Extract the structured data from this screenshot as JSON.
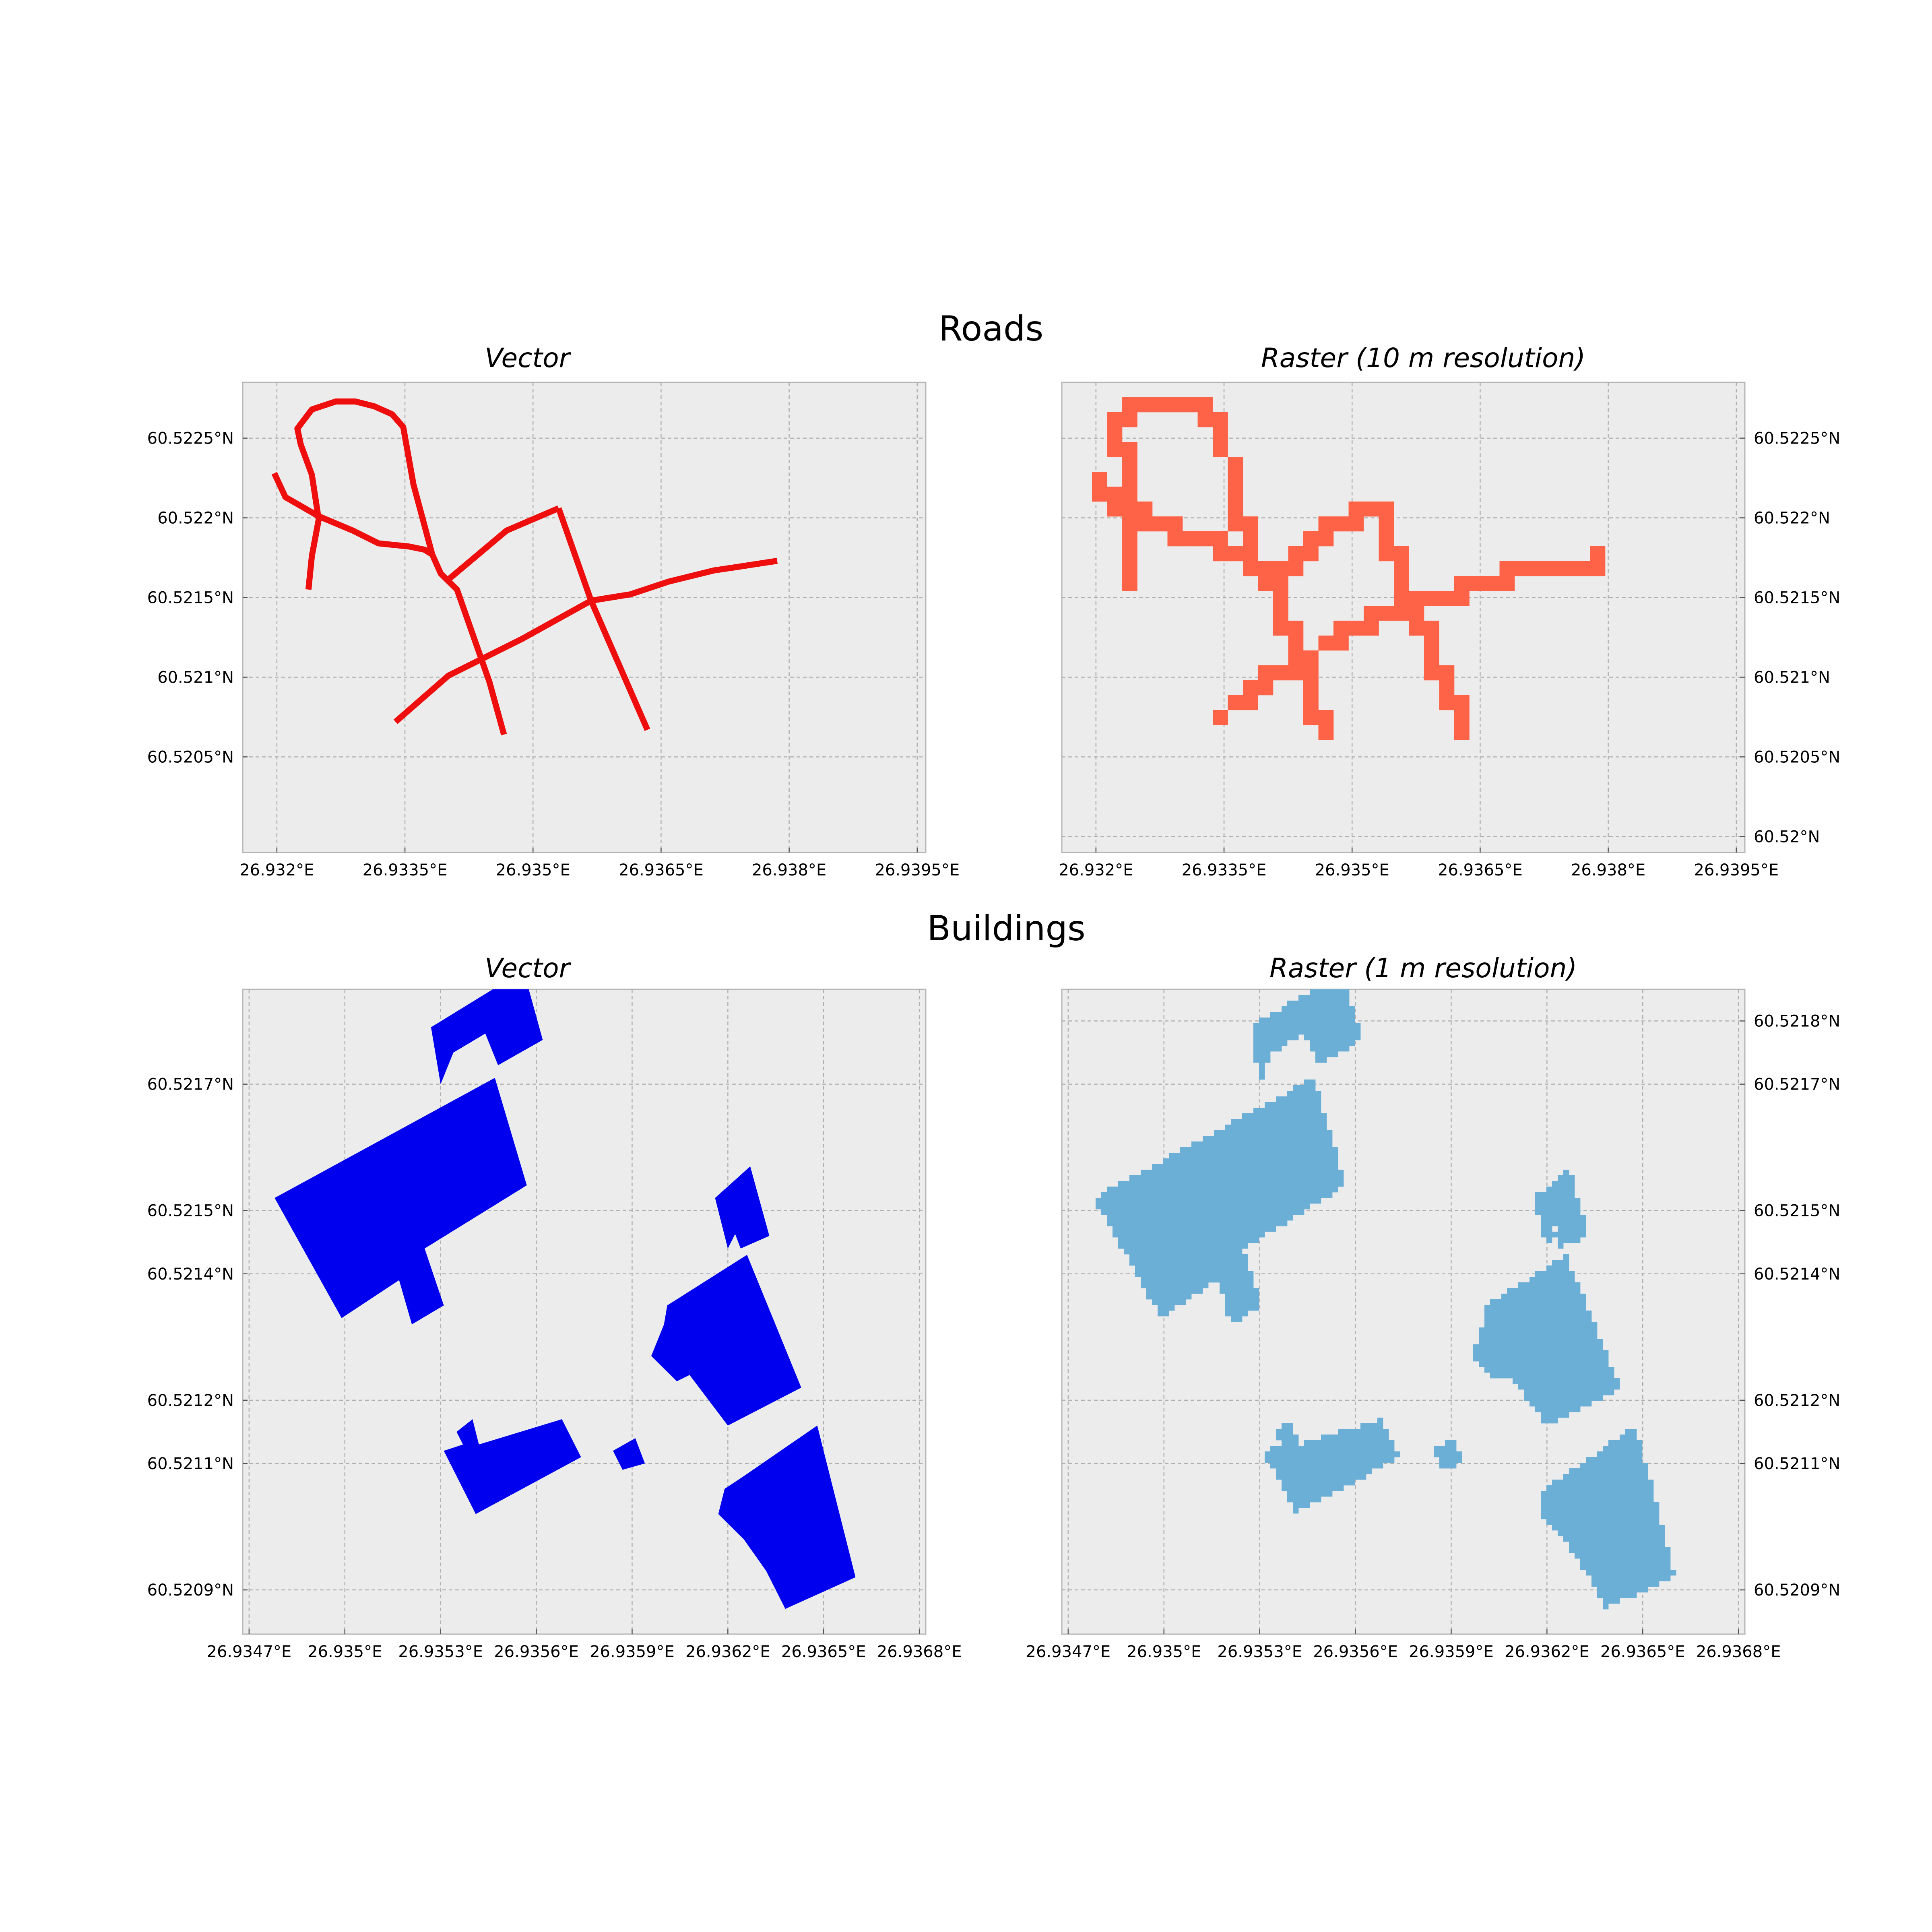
{
  "figure": {
    "sections": [
      {
        "title": "Roads"
      },
      {
        "title": "Buildings"
      }
    ]
  },
  "colors": {
    "road_vector": "#ee0e0e",
    "road_raster": "#ff6347",
    "building_vector": "#0000ee",
    "building_raster": "#6baed6",
    "panel_background": "#ececec"
  },
  "chart_data": [
    {
      "type": "map",
      "layer": "roads",
      "title": "Vector",
      "style": "line",
      "grid": true,
      "xlim": [
        26.9316,
        26.9396
      ],
      "ylim": [
        60.5199,
        60.52285
      ],
      "x_ticks": [
        26.932,
        26.9335,
        26.935,
        26.9365,
        26.938,
        26.9395
      ],
      "x_tick_labels": [
        "26.932°E",
        "26.9335°E",
        "26.935°E",
        "26.9365°E",
        "26.938°E",
        "26.9395°E"
      ],
      "y_ticks": [
        60.5205,
        60.521,
        60.5215,
        60.522,
        60.5225
      ],
      "y_tick_labels": [
        "60.5205°N",
        "60.521°N",
        "60.5215°N",
        "60.522°N",
        "60.5225°N"
      ],
      "y_axis_side": "left",
      "features": [
        [
          [
            26.93197,
            60.52228
          ],
          [
            26.9321,
            60.52213
          ],
          [
            26.93249,
            60.52201
          ],
          [
            26.93289,
            60.52192
          ],
          [
            26.93319,
            60.52184
          ],
          [
            26.93355,
            60.52182
          ],
          [
            26.93373,
            60.5218
          ],
          [
            26.93382,
            60.52177
          ]
        ],
        [
          [
            26.93237,
            60.52155
          ],
          [
            26.93241,
            60.52176
          ],
          [
            26.93249,
            60.52199
          ],
          [
            26.93241,
            60.52227
          ],
          [
            26.93228,
            60.52246
          ],
          [
            26.93224,
            60.52256
          ],
          [
            26.93241,
            60.52268
          ],
          [
            26.93269,
            60.52273
          ],
          [
            26.93292,
            60.52273
          ],
          [
            26.93314,
            60.5227
          ],
          [
            26.93335,
            60.52265
          ],
          [
            26.93348,
            60.52257
          ],
          [
            26.9336,
            60.52221
          ],
          [
            26.93382,
            60.52177
          ],
          [
            26.93392,
            60.52165
          ],
          [
            26.93411,
            60.52155
          ],
          [
            26.93449,
            60.52097
          ],
          [
            26.93466,
            60.52064
          ]
        ],
        [
          [
            26.93398,
            60.5216
          ],
          [
            26.93469,
            60.52192
          ],
          [
            26.9353,
            60.52206
          ]
        ],
        [
          [
            26.9353,
            60.52206
          ],
          [
            26.93568,
            60.52148
          ],
          [
            26.93634,
            60.52067
          ]
        ],
        [
          [
            26.93339,
            60.52072
          ],
          [
            26.93401,
            60.52101
          ],
          [
            26.93487,
            60.52124
          ],
          [
            26.93568,
            60.52148
          ],
          [
            26.93614,
            60.52152
          ],
          [
            26.93659,
            60.5216
          ],
          [
            26.93712,
            60.52167
          ],
          [
            26.93737,
            60.52169
          ],
          [
            26.93786,
            60.52173
          ]
        ]
      ]
    },
    {
      "type": "map",
      "layer": "roads",
      "title": "Raster (10 m resolution)",
      "style": "raster",
      "resolution": "10 m",
      "grid": true,
      "xlim": [
        26.9316,
        26.9396
      ],
      "ylim": [
        60.5199,
        60.52285
      ],
      "x_ticks": [
        26.932,
        26.9335,
        26.935,
        26.9365,
        26.938,
        26.9395
      ],
      "x_tick_labels": [
        "26.932°E",
        "26.9335°E",
        "26.935°E",
        "26.9365°E",
        "26.938°E",
        "26.9395°E"
      ],
      "y_ticks": [
        60.52,
        60.5205,
        60.521,
        60.5215,
        60.522,
        60.5225
      ],
      "y_tick_labels": [
        "60.52°N",
        "60.5205°N",
        "60.521°N",
        "60.5215°N",
        "60.522°N",
        "60.5225°N"
      ],
      "y_axis_side": "right"
    },
    {
      "type": "map",
      "layer": "buildings",
      "title": "Vector",
      "style": "polygon",
      "grid": true,
      "xlim": [
        26.93468,
        26.93682
      ],
      "ylim": [
        60.52083,
        60.52185
      ],
      "x_ticks": [
        26.9347,
        26.935,
        26.9353,
        26.9356,
        26.9359,
        26.9362,
        26.9365,
        26.9368
      ],
      "x_tick_labels": [
        "26.9347°E",
        "26.935°E",
        "26.9353°E",
        "26.9356°E",
        "26.9359°E",
        "26.9362°E",
        "26.9365°E",
        "26.9368°E"
      ],
      "y_ticks": [
        60.5209,
        60.5211,
        60.5212,
        60.5214,
        60.5215,
        60.5217
      ],
      "y_tick_labels": [
        "60.5209°N",
        "60.5211°N",
        "60.5212°N",
        "60.5214°N",
        "60.5215°N",
        "60.5217°N"
      ],
      "y_axis_side": "left",
      "features": [
        [
          [
            26.93478,
            60.52152
          ],
          [
            26.93547,
            60.52171
          ],
          [
            26.93557,
            60.52154
          ],
          [
            26.93525,
            60.52144
          ],
          [
            26.93531,
            60.52135
          ],
          [
            26.93521,
            60.52132
          ],
          [
            26.93517,
            60.52139
          ],
          [
            26.93499,
            60.52133
          ]
        ],
        [
          [
            26.93527,
            60.52179
          ],
          [
            26.93556,
            60.52188
          ],
          [
            26.93562,
            60.52177
          ],
          [
            26.93548,
            60.52173
          ],
          [
            26.93544,
            60.52178
          ],
          [
            26.93534,
            60.52175
          ],
          [
            26.9353,
            60.5217
          ]
        ],
        [
          [
            26.93616,
            60.52152
          ],
          [
            26.93627,
            60.52157
          ],
          [
            26.93633,
            60.52146
          ],
          [
            26.93624,
            60.52144
          ],
          [
            26.93621,
            60.52148
          ],
          [
            26.93624,
            60.52148
          ],
          [
            26.9362,
            60.52144
          ]
        ],
        [
          [
            26.93601,
            60.52135
          ],
          [
            26.93626,
            60.52143
          ],
          [
            26.93643,
            60.52122
          ],
          [
            26.9362,
            60.52116
          ],
          [
            26.93608,
            60.52124
          ],
          [
            26.93604,
            60.52123
          ],
          [
            26.93596,
            60.52127
          ],
          [
            26.936,
            60.52132
          ]
        ],
        [
          [
            26.93535,
            60.52115
          ],
          [
            26.9354,
            60.52117
          ],
          [
            26.93542,
            60.52113
          ],
          [
            26.93568,
            60.52117
          ],
          [
            26.93574,
            60.52111
          ],
          [
            26.93541,
            60.52102
          ],
          [
            26.93531,
            60.52112
          ],
          [
            26.93537,
            60.52113
          ]
        ],
        [
          [
            26.93584,
            60.52112
          ],
          [
            26.93591,
            60.52114
          ],
          [
            26.93594,
            60.5211
          ],
          [
            26.93587,
            60.52109
          ]
        ],
        [
          [
            26.93625,
            60.52108
          ],
          [
            26.93648,
            60.52116
          ],
          [
            26.9366,
            60.52092
          ],
          [
            26.93638,
            60.52087
          ],
          [
            26.93632,
            60.52093
          ],
          [
            26.93625,
            60.52098
          ],
          [
            26.93617,
            60.52102
          ],
          [
            26.93619,
            60.52106
          ]
        ]
      ]
    },
    {
      "type": "map",
      "layer": "buildings",
      "title": "Raster (1 m resolution)",
      "style": "raster",
      "resolution": "1 m",
      "grid": true,
      "xlim": [
        26.93468,
        26.93682
      ],
      "ylim": [
        60.52083,
        60.52185
      ],
      "x_ticks": [
        26.9347,
        26.935,
        26.9353,
        26.9356,
        26.9359,
        26.9362,
        26.9365,
        26.9368
      ],
      "x_tick_labels": [
        "26.9347°E",
        "26.935°E",
        "26.9353°E",
        "26.9356°E",
        "26.9359°E",
        "26.9362°E",
        "26.9365°E",
        "26.9368°E"
      ],
      "y_ticks": [
        60.5209,
        60.5211,
        60.5212,
        60.5214,
        60.5215,
        60.5217,
        60.5218
      ],
      "y_tick_labels": [
        "60.5209°N",
        "60.5211°N",
        "60.5212°N",
        "60.5214°N",
        "60.5215°N",
        "60.5217°N",
        "60.5218°N"
      ],
      "y_axis_side": "right"
    }
  ]
}
